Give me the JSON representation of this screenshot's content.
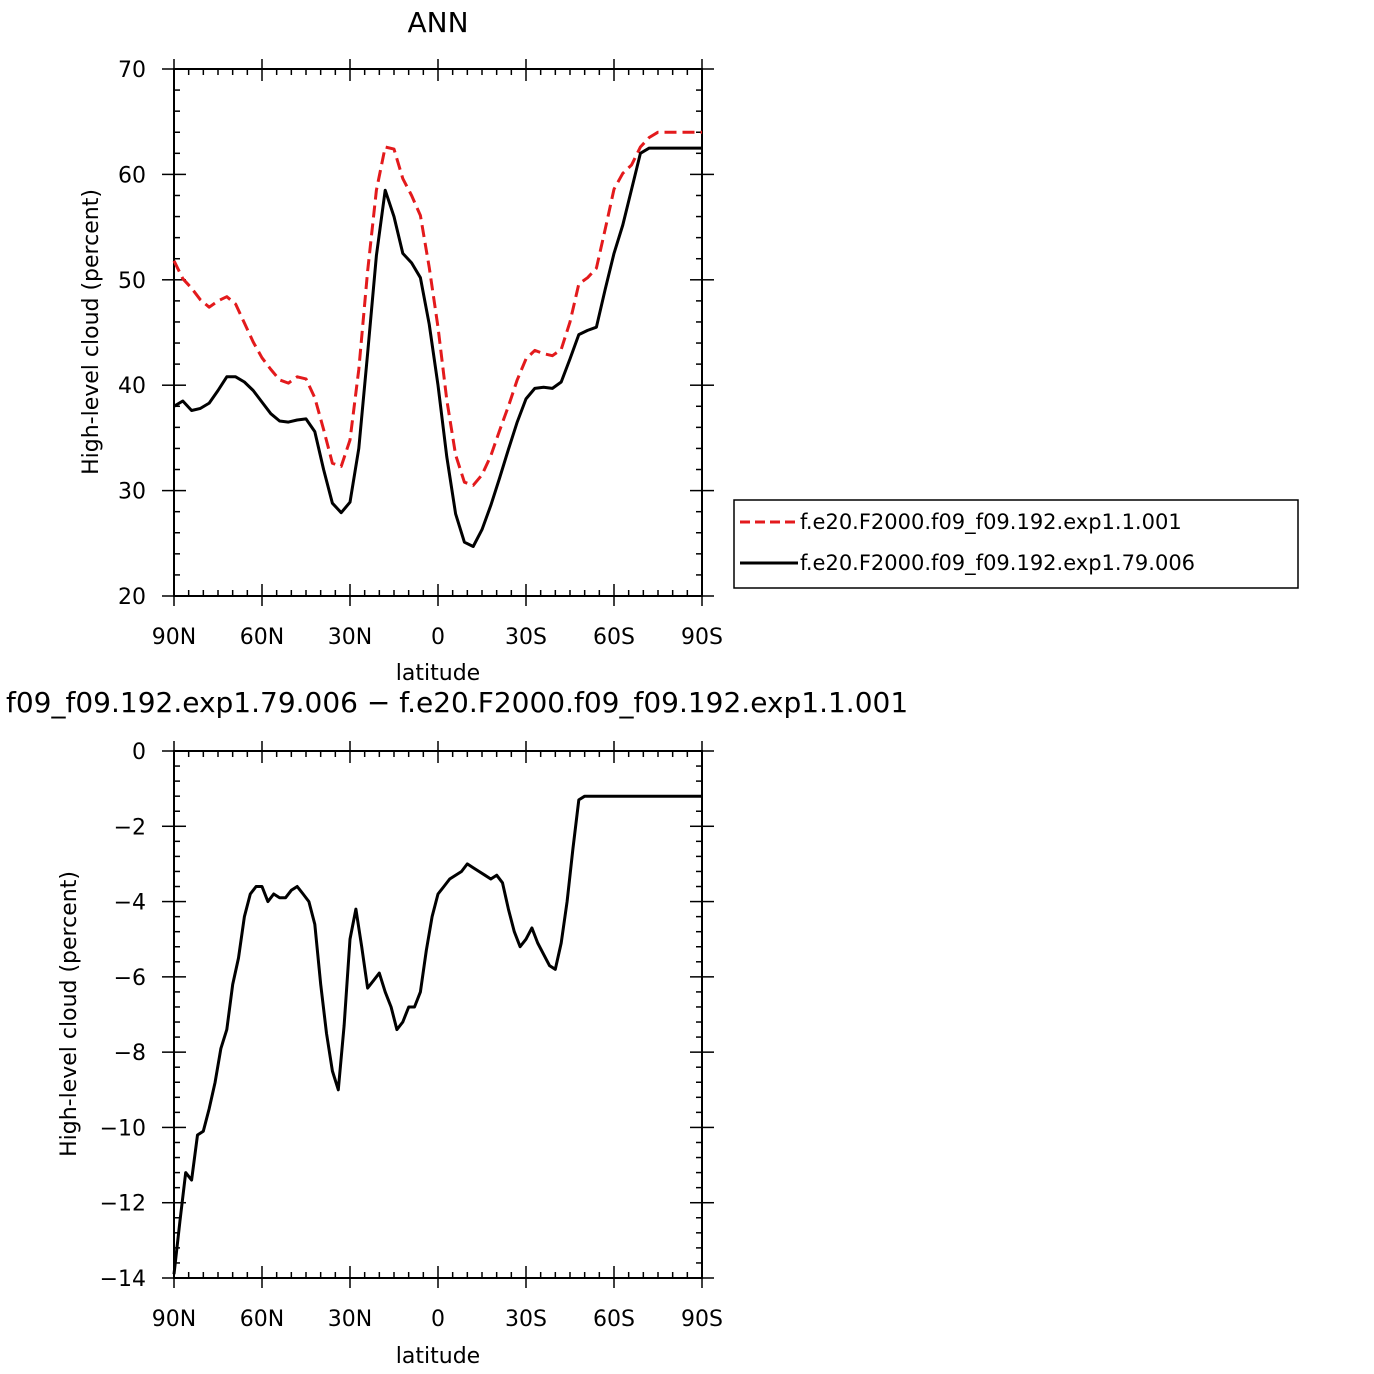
{
  "chart_data": [
    {
      "type": "line",
      "title": "ANN",
      "xlabel": "latitude",
      "ylabel": "High-level cloud (percent)",
      "xlim": [
        90,
        -90
      ],
      "ylim": [
        20,
        70
      ],
      "x_unit_note": "latitude in degrees, positive = N, negative = S",
      "yticks": [
        20,
        30,
        40,
        50,
        60,
        70
      ],
      "xticks": [
        90,
        60,
        30,
        0,
        -30,
        -60,
        -90
      ],
      "xtick_labels": [
        "90N",
        "60N",
        "30N",
        "0",
        "30S",
        "60S",
        "90S"
      ],
      "legend": {
        "placement": "right",
        "entries": [
          "f.e20.F2000.f09_f09.192.exp1.1.001",
          "f.e20.F2000.f09_f09.192.exp1.79.006"
        ]
      },
      "series": [
        {
          "name": "f.e20.F2000.f09_f09.192.exp1.1.001",
          "color": "#e31a1c",
          "dash": "dashed",
          "x": [
            90,
            87,
            84,
            81,
            78,
            75,
            72,
            69,
            66,
            63,
            60,
            57,
            54,
            51,
            48,
            45,
            42,
            39,
            36,
            33,
            30,
            27,
            24,
            21,
            18,
            15,
            12,
            9,
            6,
            3,
            0,
            -3,
            -6,
            -9,
            -12,
            -15,
            -18,
            -21,
            -24,
            -27,
            -30,
            -33,
            -36,
            -39,
            -42,
            -45,
            -48,
            -51,
            -54,
            -57,
            -60,
            -63,
            -66,
            -69,
            -72,
            -75,
            -78,
            -81,
            -84,
            -87,
            -90
          ],
          "y": [
            51.8,
            50.1,
            49.2,
            48.1,
            47.4,
            48.0,
            48.4,
            47.7,
            45.9,
            44.1,
            42.6,
            41.5,
            40.5,
            40.2,
            40.8,
            40.6,
            38.8,
            35.8,
            32.6,
            32.3,
            34.8,
            41.5,
            50.8,
            58.5,
            62.6,
            62.4,
            59.6,
            58.0,
            56.1,
            51.2,
            45.5,
            38.6,
            33.4,
            30.8,
            30.5,
            31.5,
            33.3,
            35.7,
            38.0,
            40.5,
            42.5,
            43.3,
            43.0,
            42.8,
            43.4,
            46.0,
            49.6,
            50.2,
            51.1,
            54.8,
            58.6,
            60.1,
            60.9,
            62.6,
            63.5,
            64.0,
            64.0,
            64.0,
            64.0,
            64.0,
            64.0
          ]
        },
        {
          "name": "f.e20.F2000.f09_f09.192.exp1.79.006",
          "color": "#000000",
          "dash": "solid",
          "x": [
            90,
            87,
            84,
            81,
            78,
            75,
            72,
            69,
            66,
            63,
            60,
            57,
            54,
            51,
            48,
            45,
            42,
            39,
            36,
            33,
            30,
            27,
            24,
            21,
            18,
            15,
            12,
            9,
            6,
            3,
            0,
            -3,
            -6,
            -9,
            -12,
            -15,
            -18,
            -21,
            -24,
            -27,
            -30,
            -33,
            -36,
            -39,
            -42,
            -45,
            -48,
            -51,
            -54,
            -57,
            -60,
            -63,
            -66,
            -69,
            -72,
            -75,
            -78,
            -81,
            -84,
            -87,
            -90
          ],
          "y": [
            38.0,
            38.5,
            37.6,
            37.8,
            38.3,
            39.5,
            40.8,
            40.8,
            40.3,
            39.5,
            38.4,
            37.3,
            36.6,
            36.5,
            36.7,
            36.8,
            35.6,
            32.0,
            28.8,
            27.9,
            28.9,
            34.0,
            43.0,
            52.3,
            58.5,
            56.0,
            52.5,
            51.6,
            50.2,
            45.8,
            40.0,
            33.2,
            27.8,
            25.1,
            24.7,
            26.3,
            28.6,
            31.2,
            33.9,
            36.5,
            38.7,
            39.7,
            39.8,
            39.7,
            40.3,
            42.5,
            44.8,
            45.2,
            45.5,
            49.1,
            52.5,
            55.2,
            58.6,
            62.0,
            62.5,
            62.5,
            62.5,
            62.5,
            62.5,
            62.5,
            62.5
          ]
        }
      ]
    },
    {
      "type": "line",
      "title": "f09_f09.192.exp1.79.006 − f.e20.F2000.f09_f09.192.exp1.1.001",
      "xlabel": "latitude",
      "ylabel": "High-level cloud (percent)",
      "xlim": [
        90,
        -90
      ],
      "ylim": [
        -14,
        0
      ],
      "yticks": [
        -14,
        -12,
        -10,
        -8,
        -6,
        -4,
        -2,
        0
      ],
      "ytick_labels": [
        "−14",
        "−12",
        "−10",
        "−8",
        "−6",
        "−4",
        "−2",
        "0"
      ],
      "xticks": [
        90,
        60,
        30,
        0,
        -30,
        -60,
        -90
      ],
      "xtick_labels": [
        "90N",
        "60N",
        "30N",
        "0",
        "30S",
        "60S",
        "90S"
      ],
      "series": [
        {
          "color": "#000000",
          "dash": "solid",
          "x": [
            90,
            88,
            86,
            84,
            82,
            80,
            78,
            76,
            74,
            72,
            70,
            68,
            66,
            64,
            62,
            60,
            58,
            56,
            54,
            52,
            50,
            48,
            46,
            44,
            42,
            40,
            38,
            36,
            34,
            32,
            30,
            28,
            26,
            24,
            22,
            20,
            18,
            16,
            14,
            12,
            10,
            8,
            6,
            4,
            2,
            0,
            -2,
            -4,
            -6,
            -8,
            -10,
            -12,
            -14,
            -16,
            -18,
            -20,
            -22,
            -24,
            -26,
            -28,
            -30,
            -32,
            -34,
            -36,
            -38,
            -40,
            -42,
            -44,
            -46,
            -48,
            -50,
            -52,
            -54,
            -56,
            -58,
            -60,
            -62,
            -64,
            -66,
            -68,
            -70,
            -72,
            -74,
            -76,
            -78,
            -80,
            -82,
            -84,
            -86,
            -88,
            -90
          ],
          "y": [
            -13.9,
            -12.5,
            -11.2,
            -11.4,
            -10.2,
            -10.1,
            -9.5,
            -8.8,
            -7.9,
            -7.4,
            -6.2,
            -5.5,
            -4.4,
            -3.8,
            -3.6,
            -3.6,
            -4.0,
            -3.8,
            -3.9,
            -3.9,
            -3.7,
            -3.6,
            -3.8,
            -4.0,
            -4.6,
            -6.2,
            -7.5,
            -8.5,
            -9.0,
            -7.3,
            -5.0,
            -4.2,
            -5.2,
            -6.3,
            -6.1,
            -5.9,
            -6.4,
            -6.8,
            -7.4,
            -7.2,
            -6.8,
            -6.8,
            -6.4,
            -5.3,
            -4.4,
            -3.8,
            -3.6,
            -3.4,
            -3.3,
            -3.2,
            -3.0,
            -3.1,
            -3.2,
            -3.3,
            -3.4,
            -3.3,
            -3.5,
            -4.2,
            -4.8,
            -5.2,
            -5.0,
            -4.7,
            -5.1,
            -5.4,
            -5.7,
            -5.8,
            -5.1,
            -4.0,
            -2.6,
            -1.3,
            -1.2,
            -1.2,
            -1.2,
            -1.2,
            -1.2,
            -1.2,
            -1.2,
            -1.2,
            -1.2,
            -1.2,
            -1.2,
            -1.2,
            -1.2,
            -1.2,
            -1.2,
            -1.2,
            -1.2,
            -1.2,
            -1.2,
            -1.2,
            -1.2
          ]
        }
      ]
    }
  ]
}
